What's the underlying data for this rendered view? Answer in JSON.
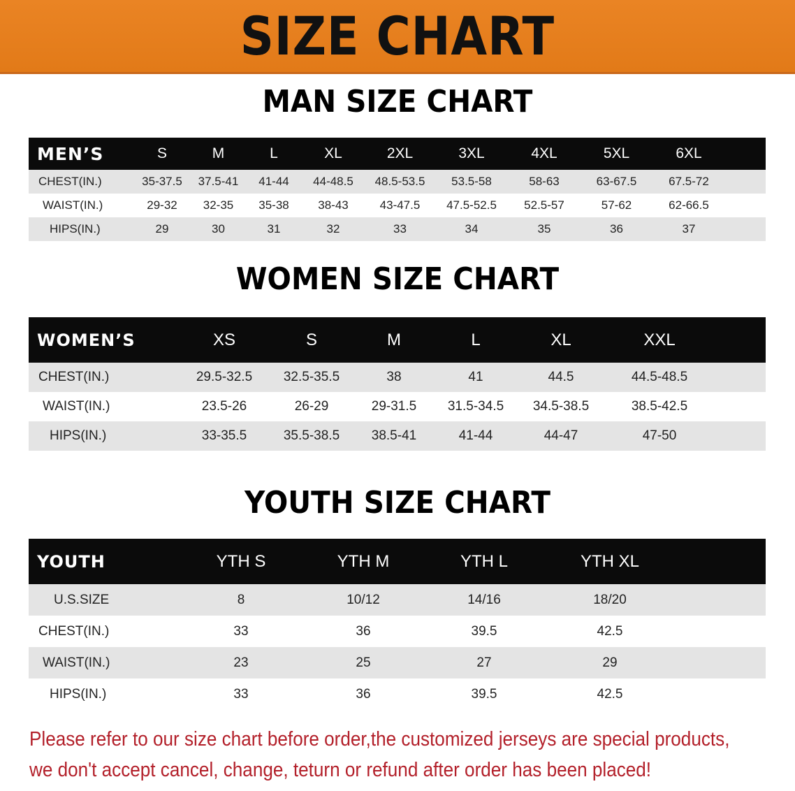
{
  "banner_title": "SIZE CHART",
  "colors": {
    "banner": "#E8811F",
    "header_row": "#0B0B0B",
    "note_text": "#B3202A"
  },
  "men": {
    "title": "MAN SIZE CHART",
    "header": [
      "MEN’S",
      "S",
      "M",
      "L",
      "XL",
      "2XL",
      "3XL",
      "4XL",
      "5XL",
      "6XL"
    ],
    "rows": [
      [
        "CHEST(IN.)",
        "35-37.5",
        "37.5-41",
        "41-44",
        "44-48.5",
        "48.5-53.5",
        "53.5-58",
        "58-63",
        "63-67.5",
        "67.5-72"
      ],
      [
        "WAIST(IN.)",
        "29-32",
        "32-35",
        "35-38",
        "38-43",
        "43-47.5",
        "47.5-52.5",
        "52.5-57",
        "57-62",
        "62-66.5"
      ],
      [
        "HIPS(IN.)",
        "29",
        "30",
        "31",
        "32",
        "33",
        "34",
        "35",
        "36",
        "37"
      ]
    ]
  },
  "women": {
    "title": "WOMEN SIZE CHART",
    "header": [
      "WOMEN’S",
      "XS",
      "S",
      "M",
      "L",
      "XL",
      "XXL"
    ],
    "rows": [
      [
        "CHEST(IN.)",
        "29.5-32.5",
        "32.5-35.5",
        "38",
        "41",
        "44.5",
        "44.5-48.5"
      ],
      [
        "WAIST(IN.)",
        "23.5-26",
        "26-29",
        "29-31.5",
        "31.5-34.5",
        "34.5-38.5",
        "38.5-42.5"
      ],
      [
        "HIPS(IN.)",
        "33-35.5",
        "35.5-38.5",
        "38.5-41",
        "41-44",
        "44-47",
        "47-50"
      ]
    ]
  },
  "youth": {
    "title": "YOUTH SIZE CHART",
    "header": [
      "YOUTH",
      "YTH S",
      "YTH M",
      "YTH L",
      "YTH XL"
    ],
    "rows": [
      [
        "U.S.SIZE",
        "8",
        "10/12",
        "14/16",
        "18/20"
      ],
      [
        "CHEST(IN.)",
        "33",
        "36",
        "39.5",
        "42.5"
      ],
      [
        "WAIST(IN.)",
        "23",
        "25",
        "27",
        "29"
      ],
      [
        "HIPS(IN.)",
        "33",
        "36",
        "39.5",
        "42.5"
      ]
    ]
  },
  "note": {
    "line1": "Please refer to our size chart before order,the customized jerseys are special products,",
    "line2": "we don't accept cancel, change, teturn or refund after order has been placed!"
  }
}
